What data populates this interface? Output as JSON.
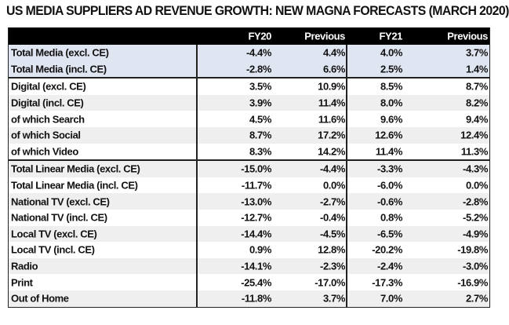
{
  "title": "US MEDIA SUPPLIERS AD REVENUE GROWTH: NEW MAGNA FORECASTS (MARCH 2020)",
  "columns": [
    "",
    "FY20",
    "Previous",
    "FY21",
    "Previous"
  ],
  "rows": [
    {
      "label": "Total Media (excl. CE)",
      "values": [
        "-4.4%",
        "4.4%",
        "4.0%",
        "3.7%"
      ]
    },
    {
      "label": "Total Media (incl. CE)",
      "values": [
        "-2.8%",
        "6.6%",
        "2.5%",
        "1.4%"
      ]
    },
    {
      "label": "Digital (excl. CE)",
      "values": [
        "3.5%",
        "10.9%",
        "8.5%",
        "8.7%"
      ]
    },
    {
      "label": "Digital (incl. CE)",
      "values": [
        "3.9%",
        "11.4%",
        "8.0%",
        "8.2%"
      ]
    },
    {
      "label": "of which Search",
      "values": [
        "4.5%",
        "11.6%",
        "9.6%",
        "9.4%"
      ]
    },
    {
      "label": "of which Social",
      "values": [
        "8.7%",
        "17.2%",
        "12.6%",
        "12.4%"
      ]
    },
    {
      "label": "of which Video",
      "values": [
        "8.3%",
        "14.2%",
        "11.4%",
        "11.3%"
      ]
    },
    {
      "label": "Total Linear Media (excl. CE)",
      "values": [
        "-15.0%",
        "-4.4%",
        "-3.3%",
        "-4.3%"
      ]
    },
    {
      "label": "Total Linear Media (incl. CE)",
      "values": [
        "-11.7%",
        "0.0%",
        "-6.0%",
        "0.0%"
      ]
    },
    {
      "label": "National TV (excl. CE)",
      "values": [
        "-13.0%",
        "-2.7%",
        "-0.6%",
        "-2.8%"
      ]
    },
    {
      "label": "National TV (incl. CE)",
      "values": [
        "-12.7%",
        "-0.4%",
        "0.8%",
        "-5.2%"
      ]
    },
    {
      "label": "Local TV (excl. CE)",
      "values": [
        "-14.4%",
        "-4.5%",
        "-6.5%",
        "-4.9%"
      ]
    },
    {
      "label": "Local TV (incl. CE)",
      "values": [
        "0.9%",
        "12.8%",
        "-20.2%",
        "-19.8%"
      ]
    },
    {
      "label": "Radio",
      "values": [
        "-14.1%",
        "-2.3%",
        "-2.4%",
        "-3.0%"
      ]
    },
    {
      "label": "Print",
      "values": [
        "-25.4%",
        "-17.0%",
        "-17.3%",
        "-16.9%"
      ]
    },
    {
      "label": "Out of Home",
      "values": [
        "-11.8%",
        "3.7%",
        "7.0%",
        "2.7%"
      ]
    }
  ],
  "colors": {
    "header": "#000000",
    "highlight": "#dfe5f1",
    "stripe": "#efefef"
  }
}
